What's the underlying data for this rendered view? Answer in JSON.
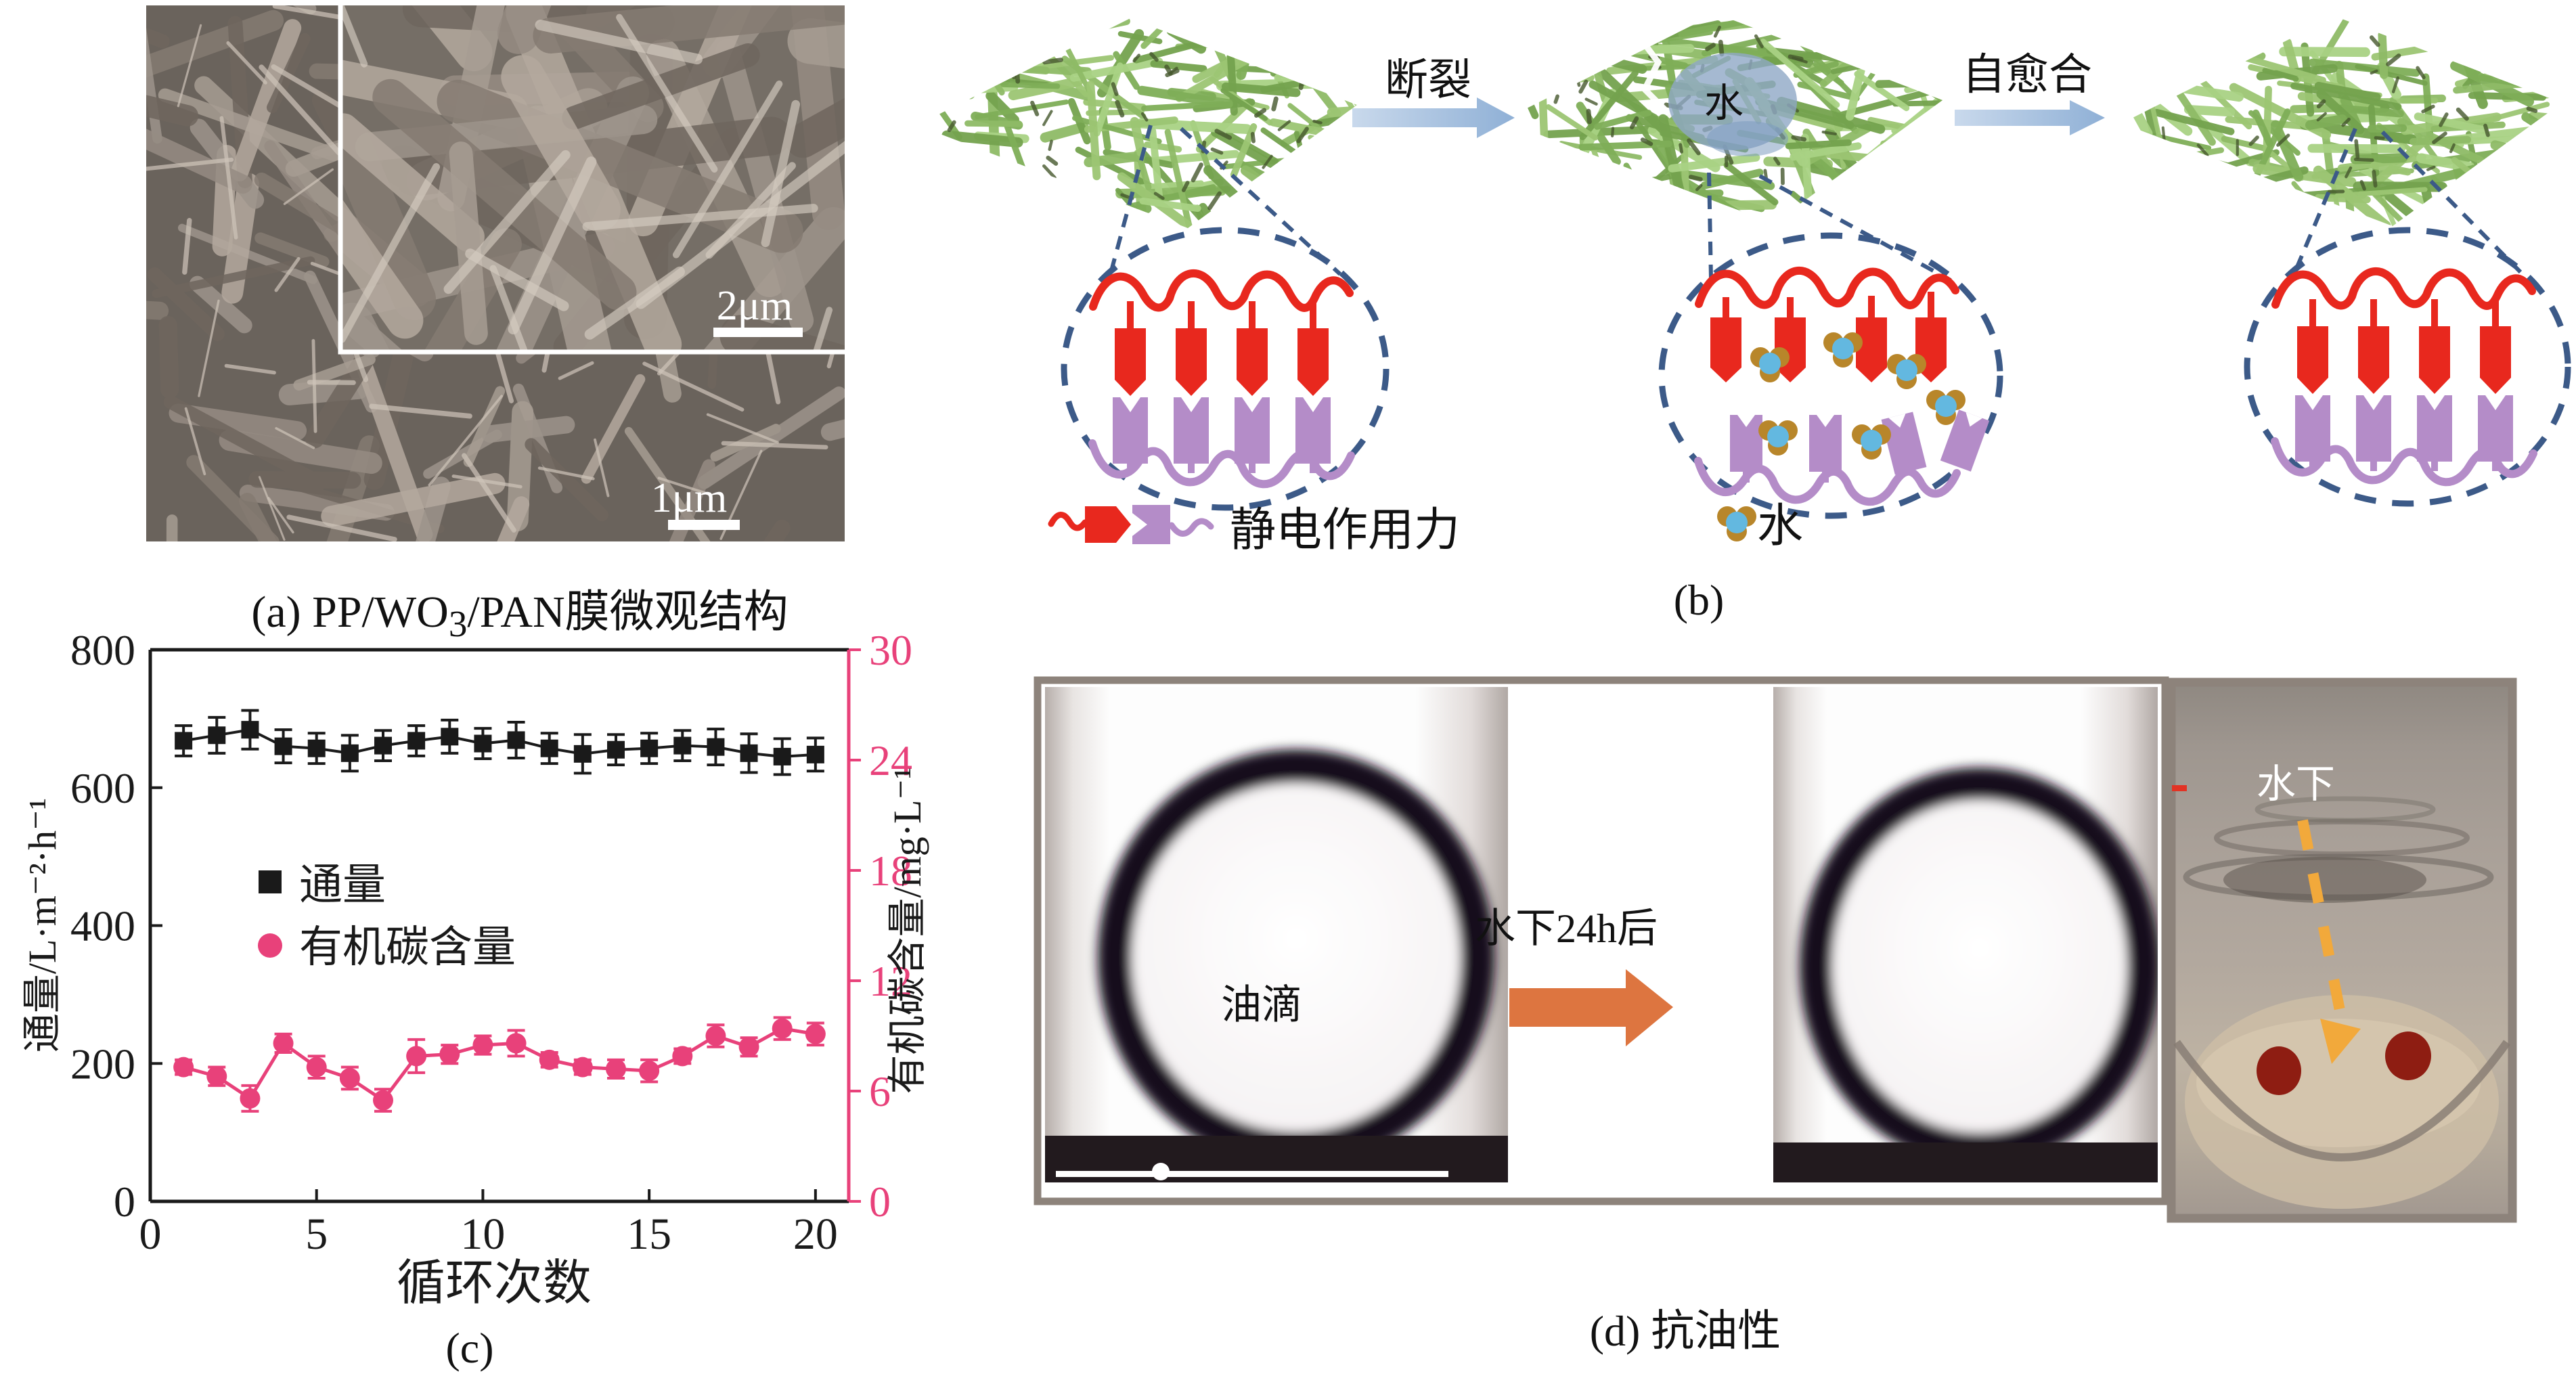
{
  "figure": {
    "panel_a": {
      "caption_pre": "(a) PP/WO",
      "caption_sub": "3",
      "caption_post": "/PAN膜微观结构",
      "scalebar_inset": "2μm",
      "scalebar_main": "1μm"
    },
    "panel_b": {
      "caption": "(b)",
      "arrow_break": "断裂",
      "arrow_heal": "自愈合",
      "water_blob": "水",
      "legend_electrostatic": "静电作用力",
      "legend_water": "水"
    },
    "panel_c": {
      "caption": "(c)"
    },
    "panel_d": {
      "caption": "(d) 抗油性",
      "oil_drop": "油滴",
      "after_label": "水下24h后",
      "underwater_label": "水下"
    }
  },
  "chart_data": {
    "type": "line",
    "title": "",
    "xlabel": "循环次数",
    "ylabel_left": "通量/L·m⁻²·h⁻¹",
    "ylabel_right": "有机碳含量/mg·L⁻¹",
    "xlim": [
      0,
      21
    ],
    "xticks": [
      0,
      5,
      10,
      15,
      20
    ],
    "ylim_left": [
      0,
      800
    ],
    "yticks_left": [
      0,
      200,
      400,
      600,
      800
    ],
    "ylim_right": [
      0,
      30
    ],
    "yticks_right": [
      0,
      6,
      12,
      18,
      24,
      30
    ],
    "grid": false,
    "legend_position": "center-left",
    "x": [
      1,
      2,
      3,
      4,
      5,
      6,
      7,
      8,
      9,
      10,
      11,
      12,
      13,
      14,
      15,
      16,
      17,
      18,
      19,
      20
    ],
    "series": [
      {
        "name": "通量",
        "axis": "left",
        "color": "#1a1a1a",
        "marker": "square",
        "values": [
          668,
          676,
          684,
          660,
          657,
          650,
          661,
          668,
          674,
          664,
          669,
          657,
          649,
          655,
          657,
          661,
          659,
          650,
          645,
          648
        ],
        "errors": [
          22,
          26,
          28,
          24,
          22,
          26,
          22,
          22,
          24,
          22,
          26,
          22,
          28,
          22,
          22,
          22,
          26,
          28,
          26,
          24
        ]
      },
      {
        "name": "有机碳含量",
        "axis": "right",
        "color": "#e8417a",
        "marker": "circle",
        "values": [
          7.3,
          6.8,
          5.6,
          8.6,
          7.3,
          6.7,
          5.5,
          7.9,
          8.0,
          8.5,
          8.6,
          7.7,
          7.3,
          7.2,
          7.1,
          7.9,
          9.0,
          8.4,
          9.4,
          9.1
        ],
        "errors": [
          0.4,
          0.5,
          0.7,
          0.5,
          0.6,
          0.6,
          0.6,
          0.9,
          0.5,
          0.5,
          0.7,
          0.4,
          0.4,
          0.5,
          0.6,
          0.4,
          0.6,
          0.5,
          0.6,
          0.6
        ]
      }
    ]
  },
  "colors": {
    "accent_pink": "#e8417a",
    "fiber_green": "#8fbb67",
    "chain_red": "#e8281e",
    "chain_purple": "#b48cc8",
    "water_blue": "#63b8e0",
    "water_gold": "#b8862a",
    "arrow_orange": "#dd7540",
    "dashed_arrow_yellow": "#f2a93b",
    "dashed_circle_navy": "#3c5a88",
    "frame_gray": "#8d837b"
  }
}
